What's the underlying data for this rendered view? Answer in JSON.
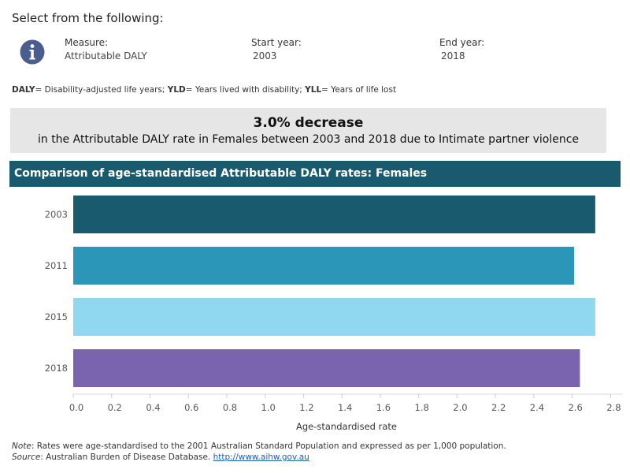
{
  "header": {
    "select_title": "Select from the following:"
  },
  "filters": {
    "measure_label": "Measure:",
    "measure_value": "Attributable DALY",
    "start_label": "Start year:",
    "start_value": "2003",
    "end_label": "End year:",
    "end_value": "2018"
  },
  "glossary": {
    "daly_key": "DALY",
    "daly_text": "= Disability-adjusted life years; ",
    "yld_key": "YLD",
    "yld_text": "= Years lived with disability; ",
    "yll_key": "YLL",
    "yll_text": "= Years of life lost"
  },
  "banner": {
    "headline": "3.0% decrease",
    "detail": "in the Attributable DALY rate in Females between 2003 and 2018 due to Intimate partner violence"
  },
  "chart_header": "Comparison of age-standardised Attributable DALY rates: Females",
  "chart_data": {
    "type": "bar",
    "orientation": "horizontal",
    "categories": [
      "2003",
      "2011",
      "2015",
      "2018"
    ],
    "values": [
      2.72,
      2.61,
      2.72,
      2.64
    ],
    "colors": [
      "#1a5a6e",
      "#2b96b7",
      "#8fd8f0",
      "#7a64b0"
    ],
    "xlabel": "Age-standardised rate",
    "ylabel": "",
    "xlim": [
      0,
      2.86
    ],
    "xticks": [
      "0.0",
      "0.2",
      "0.4",
      "0.6",
      "0.8",
      "1.0",
      "1.2",
      "1.4",
      "1.6",
      "1.8",
      "2.0",
      "2.2",
      "2.4",
      "2.6",
      "2.8"
    ],
    "grid": false
  },
  "footnotes": {
    "note_label": "Note",
    "note_text": ": Rates were age-standardised to the 2001 Australian Standard Population and expressed as per 1,000 population.",
    "source_label": "Source",
    "source_text": ": Australian Burden of Disease Database. ",
    "source_link": "http://www.aihw.gov.au"
  },
  "colors": {
    "header_bg": "#1a5a6e",
    "banner_bg": "#e6e6e6",
    "info_icon": "#4a5d8f"
  },
  "icons": {
    "info": "info-icon"
  }
}
